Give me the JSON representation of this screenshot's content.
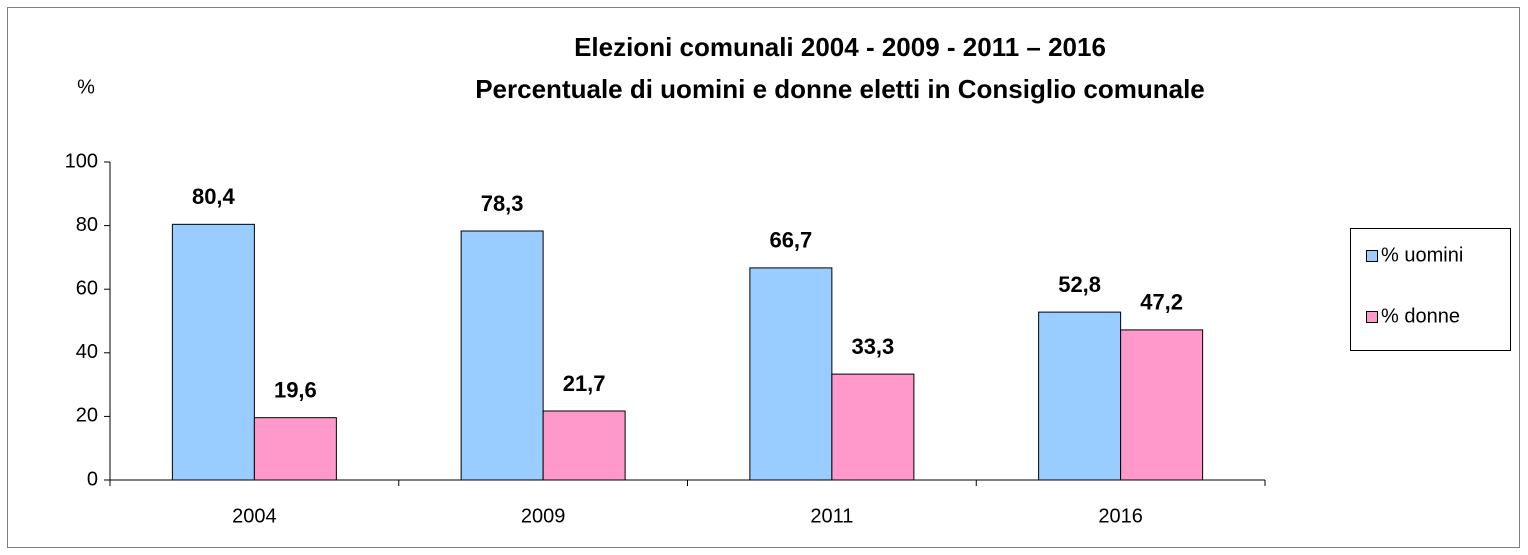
{
  "chart_data": {
    "type": "bar",
    "title": [
      "Elezioni comunali 2004 - 2009 - 2011 – 2016",
      "Percentuale di uomini e donne eletti in Consiglio comunale"
    ],
    "y_label": "%",
    "categories": [
      "2004",
      "2009",
      "2011",
      "2016"
    ],
    "series": [
      {
        "name": "% uomini",
        "color": "#99ccff",
        "values": [
          80.4,
          78.3,
          66.7,
          52.8
        ],
        "value_labels": [
          "80,4",
          "78,3",
          "66,7",
          "52,8"
        ]
      },
      {
        "name": "% donne",
        "color": "#ff99cc",
        "values": [
          19.6,
          21.7,
          33.3,
          47.2
        ],
        "value_labels": [
          "19,6",
          "21,7",
          "33,3",
          "47,2"
        ]
      }
    ],
    "ylim": [
      0,
      100
    ],
    "yticks": [
      0,
      20,
      40,
      60,
      80,
      100
    ],
    "grid": false,
    "legend": "right"
  }
}
